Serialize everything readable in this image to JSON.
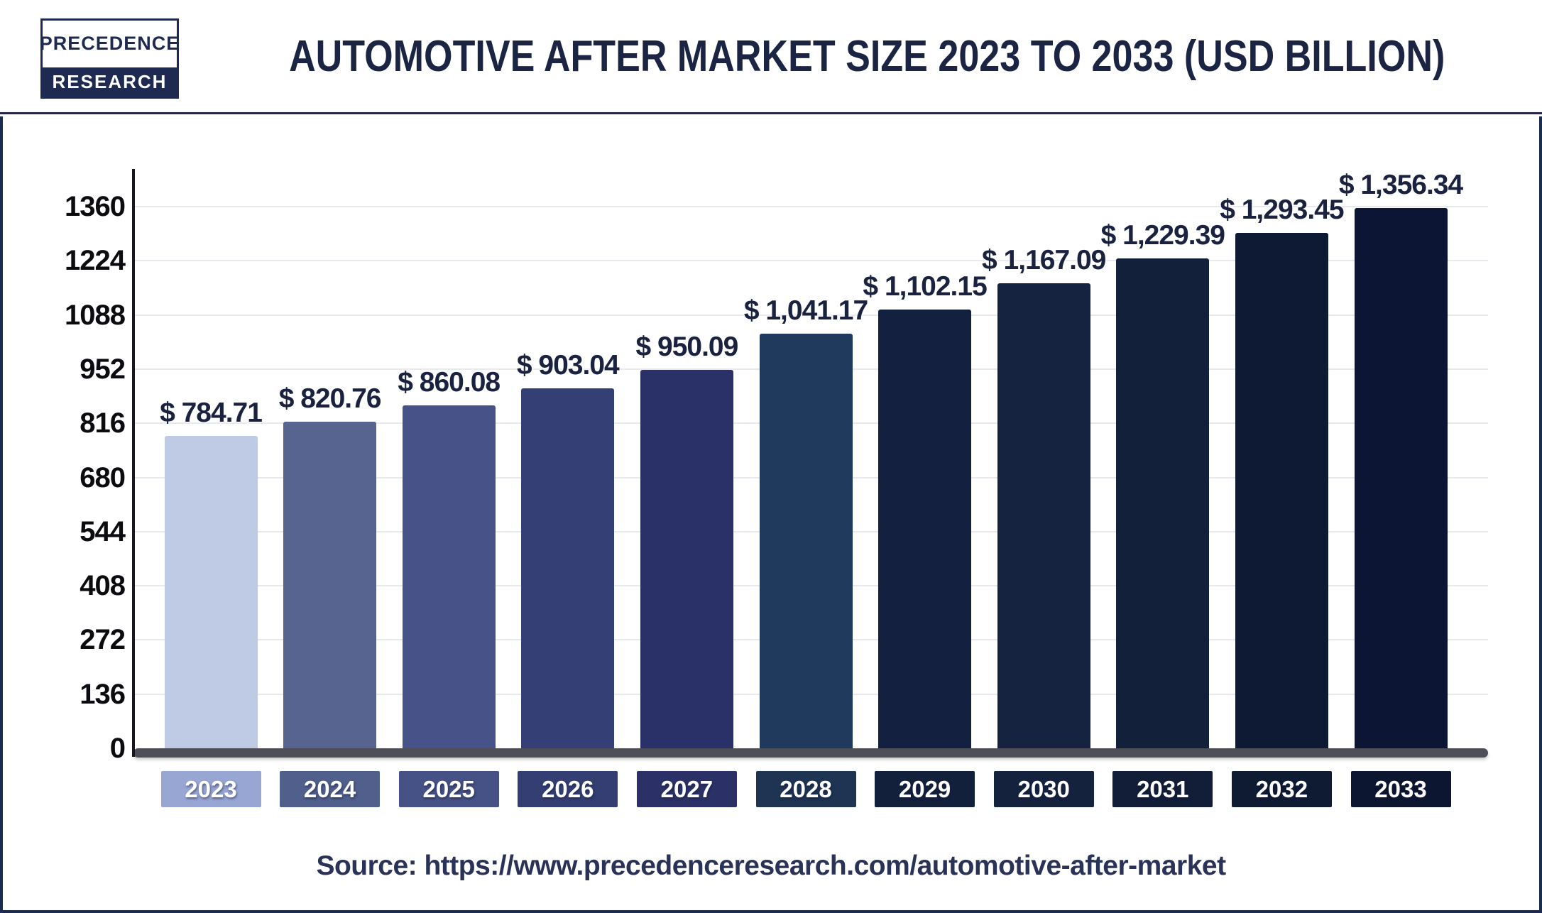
{
  "header": {
    "logo_line1": "PRECEDENCE",
    "logo_line2": "RESEARCH",
    "title": "AUTOMOTIVE AFTER MARKET SIZE 2023 TO 2033 (USD BILLION)"
  },
  "source": {
    "text": "Source: https://www.precedenceresearch.com/automotive-after-market"
  },
  "colors": {
    "navy_accent": "#1f2a52",
    "title_text": "#1c2444",
    "separator": "#24244e",
    "body_border": "#1c2b50",
    "axis_line": "#17171f",
    "gridline": "#e8e8ef",
    "baseline": "#4e4e58",
    "tick_text": "#0b0b10",
    "value_text": "#1a2240",
    "source_text": "#2b3258"
  },
  "chart_data": {
    "type": "bar",
    "title": "Automotive After Market Size 2023 to 2033 (USD Billion)",
    "unit": "USD Billion",
    "xlabel": "",
    "ylabel": "",
    "grid": true,
    "legend_position": "none",
    "ylim": [
      0,
      1455
    ],
    "yticks": [
      0,
      136,
      272,
      408,
      544,
      680,
      816,
      952,
      1088,
      1224,
      1360
    ],
    "categories": [
      "2023",
      "2024",
      "2025",
      "2026",
      "2027",
      "2028",
      "2029",
      "2030",
      "2031",
      "2032",
      "2033"
    ],
    "values": [
      784.71,
      820.76,
      860.08,
      903.04,
      950.09,
      1041.17,
      1102.15,
      1167.09,
      1229.39,
      1293.45,
      1356.34
    ],
    "value_labels": [
      "$ 784.71",
      "$ 820.76",
      "$ 860.08",
      "$ 903.04",
      "$ 950.09",
      "$ 1,041.17",
      "$ 1,102.15",
      "$ 1,167.09",
      "$ 1,229.39",
      "$ 1,293.45",
      "$ 1,356.34"
    ],
    "bar_colors": [
      "#bfcbe4",
      "#56648f",
      "#475288",
      "#343f75",
      "#2a3068",
      "#1f3a5c",
      "#13203f",
      "#162340",
      "#13203a",
      "#0e1a33",
      "#0c1533"
    ],
    "badge_colors": [
      "#98a6d4",
      "#515f8c",
      "#465185",
      "#343e73",
      "#2b3166",
      "#1e3452",
      "#13203c",
      "#15223e",
      "#121e38",
      "#0f1a33",
      "#0d1630"
    ]
  }
}
